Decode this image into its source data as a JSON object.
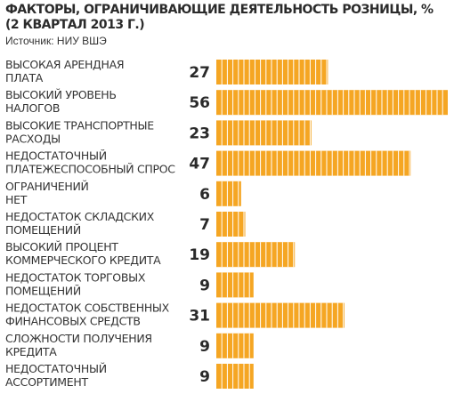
{
  "chart_data": {
    "type": "bar",
    "orientation": "horizontal",
    "title": "ФАКТОРЫ, ОГРАНИЧИВАЮЩИЕ ДЕЯТЕЛЬНОСТЬ РОЗНИЦЫ, % (2 КВАРТАЛ 2013 Г.)",
    "source": "Источник: НИУ ВШЭ",
    "bar_color": "#f5a623",
    "xlim": [
      0,
      56
    ],
    "grid": false,
    "legend": "none",
    "categories": [
      [
        "ВЫСОКАЯ АРЕНДНАЯ",
        "ПЛАТА"
      ],
      [
        "ВЫСОКИЙ УРОВЕНЬ",
        "НАЛОГОВ"
      ],
      [
        "ВЫСОКИЕ ТРАНСПОРТНЫЕ",
        "РАСХОДЫ"
      ],
      [
        "НЕДОСТАТОЧНЫЙ",
        "ПЛАТЕЖЕСПОСОБНЫЙ СПРОС"
      ],
      [
        "ОГРАНИЧЕНИЙ",
        "НЕТ"
      ],
      [
        "НЕДОСТАТОК СКЛАДСКИХ",
        "ПОМЕЩЕНИЙ"
      ],
      [
        "ВЫСОКИЙ ПРОЦЕНТ",
        "КОММЕРЧЕСКОГО КРЕДИТА"
      ],
      [
        "НЕДОСТАТОК ТОРГОВЫХ",
        "ПОМЕЩЕНИЙ"
      ],
      [
        "НЕДОСТАТОК СОБСТВЕННЫХ",
        "ФИНАНСОВЫХ СРЕДСТВ"
      ],
      [
        "СЛОЖНОСТИ ПОЛУЧЕНИЯ",
        "КРЕДИТА"
      ],
      [
        "НЕДОСТАТОЧНЫЙ",
        "АССОРТИМЕНТ"
      ]
    ],
    "values": [
      27,
      56,
      23,
      47,
      6,
      7,
      19,
      9,
      31,
      9,
      9
    ]
  }
}
